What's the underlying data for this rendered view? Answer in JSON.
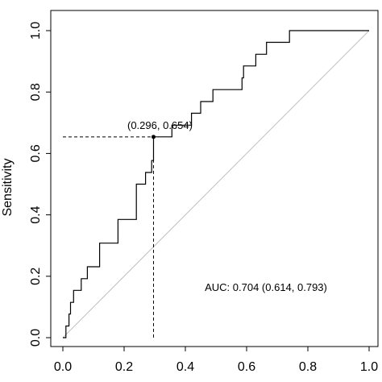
{
  "chart_data": {
    "type": "line",
    "title": "",
    "xlabel": "",
    "ylabel": "Sensitivity",
    "xlim": [
      0.0,
      1.0
    ],
    "ylim": [
      0.0,
      1.0
    ],
    "x_ticks": [
      "0.0",
      "0.2",
      "0.4",
      "0.6",
      "0.8",
      "1.0"
    ],
    "y_ticks": [
      "0.0",
      "0.2",
      "0.4",
      "0.6",
      "0.8",
      "1.0"
    ],
    "grid": false,
    "series": [
      {
        "values_x": [
          0.0,
          0.01,
          0.01,
          0.02,
          0.02,
          0.025,
          0.025,
          0.035,
          0.035,
          0.045,
          0.045,
          0.06,
          0.06,
          0.08,
          0.08,
          0.09,
          0.09,
          0.12,
          0.12,
          0.18,
          0.18,
          0.23,
          0.23,
          0.24,
          0.24,
          0.27,
          0.27,
          0.29,
          0.29,
          0.296,
          0.296,
          0.356,
          0.356,
          0.42,
          0.42,
          0.45,
          0.45,
          0.49,
          0.49,
          0.585,
          0.585,
          0.59,
          0.59,
          0.63,
          0.63,
          0.665,
          0.665,
          0.7,
          0.7,
          0.74,
          0.74,
          1.0
        ],
        "values_y": [
          0.0,
          0.0,
          0.038,
          0.038,
          0.077,
          0.077,
          0.115,
          0.115,
          0.154,
          0.154,
          0.154,
          0.154,
          0.192,
          0.192,
          0.231,
          0.231,
          0.231,
          0.231,
          0.308,
          0.308,
          0.385,
          0.385,
          0.385,
          0.385,
          0.5,
          0.5,
          0.538,
          0.538,
          0.577,
          0.577,
          0.654,
          0.654,
          0.692,
          0.692,
          0.731,
          0.731,
          0.769,
          0.769,
          0.808,
          0.808,
          0.846,
          0.846,
          0.885,
          0.885,
          0.923,
          0.923,
          0.962,
          0.962,
          0.962,
          0.962,
          1.0,
          1.0
        ]
      }
    ],
    "reference_line": {
      "x": [
        0.0,
        1.0
      ],
      "y": [
        0.0,
        1.0
      ]
    },
    "cutoff_point": {
      "x": 0.296,
      "y": 0.654,
      "label": "(0.296, 0.654)"
    },
    "auc_text": "AUC: 0.704 (0.614, 0.793)",
    "colors": {
      "curve": "#000000",
      "reference": "#bfbfbf",
      "axis": "#000000"
    }
  }
}
